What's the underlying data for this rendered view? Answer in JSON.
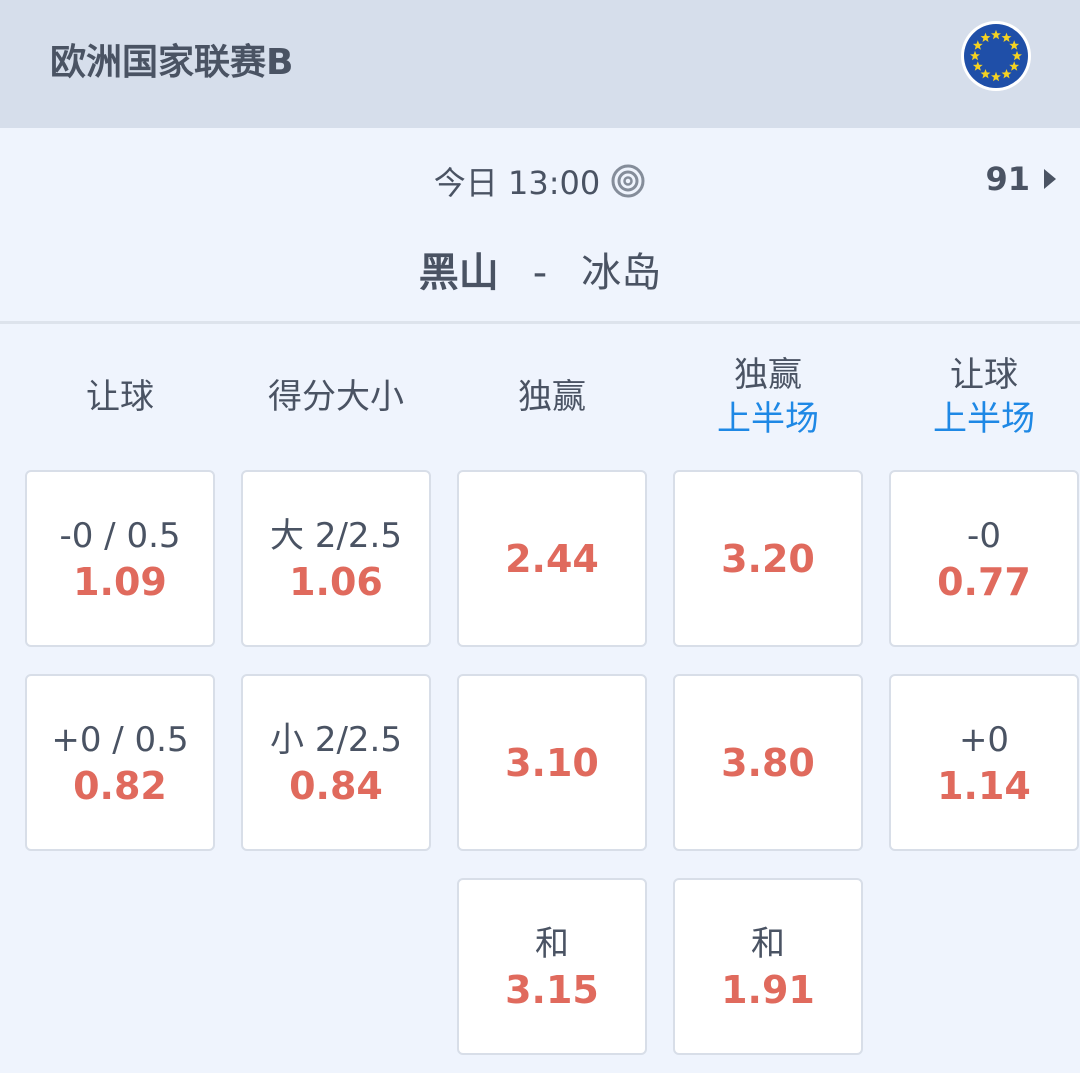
{
  "header": {
    "league": "欧洲国家联赛B",
    "flag_icon": "eu-flag-icon"
  },
  "match": {
    "time": "今日 13:00",
    "count": "91",
    "home": "黑山",
    "separator": "-",
    "away": "冰岛"
  },
  "columns": [
    {
      "title": "让球",
      "sub": ""
    },
    {
      "title": "得分大小",
      "sub": ""
    },
    {
      "title": "独赢",
      "sub": ""
    },
    {
      "title": "独赢",
      "sub": "上半场"
    },
    {
      "title": "让球",
      "sub": "上半场"
    }
  ],
  "cells": [
    [
      {
        "line": "-0 / 0.5",
        "odds": "1.09"
      },
      {
        "line": "+0 / 0.5",
        "odds": "0.82"
      }
    ],
    [
      {
        "line": "大 2/2.5",
        "odds": "1.06"
      },
      {
        "line": "小 2/2.5",
        "odds": "0.84"
      }
    ],
    [
      {
        "line": "",
        "odds": "2.44"
      },
      {
        "line": "",
        "odds": "3.10"
      },
      {
        "line": "和",
        "odds": "3.15"
      }
    ],
    [
      {
        "line": "",
        "odds": "3.20"
      },
      {
        "line": "",
        "odds": "3.80"
      },
      {
        "line": "和",
        "odds": "1.91"
      }
    ],
    [
      {
        "line": "-0",
        "odds": "0.77"
      },
      {
        "line": "+0",
        "odds": "1.14"
      }
    ]
  ],
  "colors": {
    "odds": "#e06a5d",
    "accent": "#1e88e5",
    "header_bg": "#d6deeb",
    "text": "#4a5363"
  }
}
